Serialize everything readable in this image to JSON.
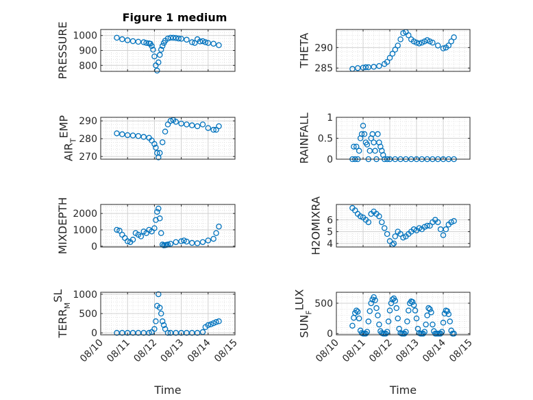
{
  "figure_title": "Figure 1 medium",
  "marker_color": "#0072BD",
  "x_ticks": [
    "08/10",
    "08/11",
    "08/12",
    "08/13",
    "08/14",
    "08/15"
  ],
  "x_label": "Time",
  "chart_data": [
    {
      "type": "scatter",
      "title": "Figure 1 medium",
      "ylabel": "PRESSURE",
      "ylabel_main": "PRESSURE",
      "ylabel_sub": "",
      "ylabel_tail": "",
      "sub_mode": "none",
      "xlim": [
        0,
        5
      ],
      "ylim": [
        760,
        1040
      ],
      "yticks": [
        800,
        900,
        1000
      ],
      "x": [
        0.6,
        0.8,
        1.0,
        1.2,
        1.4,
        1.6,
        1.7,
        1.8,
        1.85,
        1.9,
        1.95,
        2.0,
        2.05,
        2.1,
        2.15,
        2.2,
        2.25,
        2.3,
        2.35,
        2.4,
        2.5,
        2.6,
        2.7,
        2.8,
        2.9,
        3.0,
        3.2,
        3.4,
        3.5,
        3.6,
        3.7,
        3.8,
        3.9,
        4.0,
        4.2,
        4.4
      ],
      "y": [
        985,
        975,
        968,
        962,
        958,
        955,
        950,
        947,
        945,
        930,
        905,
        860,
        800,
        765,
        820,
        870,
        905,
        930,
        950,
        965,
        980,
        985,
        985,
        983,
        980,
        978,
        972,
        955,
        950,
        975,
        960,
        962,
        955,
        950,
        945,
        935
      ]
    },
    {
      "type": "scatter",
      "title": "",
      "ylabel": "THETA",
      "ylabel_main": "THETA",
      "ylabel_sub": "",
      "ylabel_tail": "",
      "sub_mode": "none",
      "xlim": [
        0,
        5
      ],
      "ylim": [
        284.2,
        294.4
      ],
      "yticks": [
        285,
        290
      ],
      "x": [
        0.6,
        0.8,
        1.0,
        1.1,
        1.2,
        1.4,
        1.6,
        1.8,
        1.9,
        2.0,
        2.1,
        2.2,
        2.3,
        2.4,
        2.5,
        2.6,
        2.7,
        2.8,
        2.9,
        3.0,
        3.1,
        3.2,
        3.3,
        3.4,
        3.5,
        3.6,
        3.8,
        4.0,
        4.1,
        4.2,
        4.3,
        4.4
      ],
      "y": [
        284.8,
        285.0,
        285.1,
        285.2,
        285.2,
        285.3,
        285.5,
        286.0,
        286.5,
        287.5,
        288.5,
        289.5,
        290.5,
        292.0,
        293.5,
        293.8,
        293.0,
        292.0,
        291.5,
        291.2,
        291.0,
        291.2,
        291.5,
        291.8,
        291.5,
        291.2,
        290.5,
        289.8,
        290.0,
        290.5,
        291.5,
        292.5
      ]
    },
    {
      "type": "scatter",
      "title": "",
      "ylabel": "AIR_TEMP",
      "ylabel_main": "AIR",
      "ylabel_sub": "T",
      "ylabel_tail": "EMP",
      "sub_mode": "sub",
      "xlim": [
        0,
        5
      ],
      "ylim": [
        268.5,
        292
      ],
      "yticks": [
        270,
        280,
        290
      ],
      "x": [
        0.6,
        0.8,
        1.0,
        1.2,
        1.4,
        1.6,
        1.8,
        1.9,
        2.0,
        2.05,
        2.1,
        2.15,
        2.2,
        2.3,
        2.4,
        2.5,
        2.6,
        2.7,
        2.8,
        3.0,
        3.2,
        3.4,
        3.6,
        3.8,
        4.0,
        4.2,
        4.3,
        4.4
      ],
      "y": [
        283,
        282.5,
        282,
        281.8,
        281.5,
        281,
        280.5,
        279,
        277,
        275,
        272,
        269.5,
        272,
        278,
        284,
        288,
        290,
        290.5,
        289.5,
        288.5,
        288,
        287.5,
        287,
        288,
        286,
        285,
        285,
        287
      ]
    },
    {
      "type": "scatter",
      "title": "",
      "ylabel": "RAINFALL",
      "ylabel_main": "RAINFALL",
      "ylabel_sub": "",
      "ylabel_tail": "",
      "sub_mode": "none",
      "xlim": [
        0,
        5
      ],
      "ylim": [
        0,
        1
      ],
      "yticks": [
        0,
        0.5,
        1
      ],
      "x": [
        0.6,
        0.65,
        0.7,
        0.75,
        0.8,
        0.85,
        0.9,
        0.95,
        1.0,
        1.05,
        1.1,
        1.15,
        1.2,
        1.25,
        1.3,
        1.35,
        1.4,
        1.45,
        1.5,
        1.55,
        1.6,
        1.65,
        1.7,
        1.75,
        1.8,
        1.9,
        2.0,
        2.2,
        2.4,
        2.6,
        2.8,
        3.0,
        3.2,
        3.4,
        3.6,
        3.8,
        4.0,
        4.2,
        4.4
      ],
      "y": [
        0,
        0.3,
        0,
        0.3,
        0,
        0.2,
        0.5,
        0.6,
        0.8,
        0.6,
        0.4,
        0.35,
        0,
        0.2,
        0.5,
        0.6,
        0.4,
        0.2,
        0,
        0.6,
        0.4,
        0.3,
        0.2,
        0.1,
        0,
        0,
        0,
        0,
        0,
        0,
        0,
        0,
        0,
        0,
        0,
        0,
        0,
        0,
        0
      ]
    },
    {
      "type": "scatter",
      "title": "",
      "ylabel": "MIXDEPTH",
      "ylabel_main": "MIXDEPTH",
      "ylabel_sub": "",
      "ylabel_tail": "",
      "sub_mode": "none",
      "xlim": [
        0,
        5
      ],
      "ylim": [
        -50,
        2550
      ],
      "yticks": [
        0,
        1000,
        2000
      ],
      "x": [
        0.6,
        0.7,
        0.8,
        0.9,
        1.0,
        1.1,
        1.2,
        1.3,
        1.4,
        1.5,
        1.6,
        1.7,
        1.8,
        1.9,
        2.0,
        2.05,
        2.1,
        2.15,
        2.2,
        2.25,
        2.3,
        2.35,
        2.4,
        2.45,
        2.5,
        2.6,
        2.8,
        3.0,
        3.1,
        3.2,
        3.4,
        3.6,
        3.8,
        4.0,
        4.2,
        4.3,
        4.4
      ],
      "y": [
        1000,
        950,
        700,
        500,
        300,
        250,
        400,
        800,
        700,
        600,
        900,
        800,
        1000,
        900,
        1100,
        1600,
        2100,
        2300,
        1700,
        800,
        100,
        50,
        60,
        80,
        100,
        150,
        250,
        300,
        350,
        280,
        200,
        180,
        250,
        350,
        450,
        800,
        1200
      ]
    },
    {
      "type": "scatter",
      "title": "",
      "ylabel": "H2OMIXRA",
      "ylabel_main": "H2OMIXRA",
      "ylabel_sub": "",
      "ylabel_tail": "",
      "sub_mode": "none",
      "xlim": [
        0,
        5
      ],
      "ylim": [
        3.7,
        7.3
      ],
      "yticks": [
        4,
        5,
        6
      ],
      "x": [
        0.6,
        0.7,
        0.8,
        0.9,
        1.0,
        1.1,
        1.2,
        1.3,
        1.4,
        1.5,
        1.6,
        1.7,
        1.8,
        1.9,
        2.0,
        2.1,
        2.15,
        2.2,
        2.3,
        2.4,
        2.5,
        2.6,
        2.7,
        2.8,
        2.9,
        3.0,
        3.1,
        3.2,
        3.3,
        3.4,
        3.5,
        3.6,
        3.7,
        3.8,
        3.9,
        4.0,
        4.1,
        4.2,
        4.3,
        4.4
      ],
      "y": [
        7.0,
        6.8,
        6.5,
        6.3,
        6.2,
        6.0,
        5.8,
        6.5,
        6.7,
        6.5,
        6.3,
        5.8,
        5.3,
        4.8,
        4.2,
        3.9,
        4.0,
        4.6,
        5.0,
        4.8,
        4.5,
        4.6,
        4.8,
        5.0,
        5.2,
        5.1,
        5.3,
        5.2,
        5.4,
        5.5,
        5.5,
        5.8,
        6.0,
        5.8,
        5.2,
        4.7,
        5.2,
        5.6,
        5.8,
        5.9
      ]
    },
    {
      "type": "scatter",
      "title": "",
      "ylabel": "TERR_MSL",
      "ylabel_main": "TERR",
      "ylabel_sub": "M",
      "ylabel_tail": "SL",
      "sub_mode": "sub",
      "xlim": [
        0,
        5
      ],
      "ylim": [
        -50,
        1050
      ],
      "yticks": [
        0,
        500,
        1000
      ],
      "x": [
        0.6,
        0.8,
        1.0,
        1.2,
        1.4,
        1.6,
        1.8,
        1.9,
        2.0,
        2.05,
        2.1,
        2.15,
        2.2,
        2.25,
        2.3,
        2.35,
        2.4,
        2.5,
        2.6,
        2.8,
        3.0,
        3.2,
        3.4,
        3.6,
        3.8,
        3.9,
        4.0,
        4.1,
        4.2,
        4.3,
        4.4
      ],
      "y": [
        0,
        0,
        0,
        0,
        0,
        0,
        0,
        20,
        100,
        300,
        700,
        1000,
        650,
        500,
        300,
        200,
        100,
        0,
        0,
        0,
        0,
        0,
        0,
        0,
        20,
        150,
        200,
        220,
        250,
        280,
        300
      ]
    },
    {
      "type": "scatter",
      "title": "",
      "ylabel": "SUN_FLUX",
      "ylabel_main": "SUN",
      "ylabel_sub": "F",
      "ylabel_tail": "LUX",
      "sub_mode": "sub",
      "xlim": [
        0,
        5
      ],
      "ylim": [
        -20,
        680
      ],
      "yticks": [
        0,
        500
      ],
      "x": [
        0.6,
        0.65,
        0.7,
        0.75,
        0.8,
        0.85,
        0.9,
        0.95,
        1.0,
        1.05,
        1.1,
        1.15,
        1.2,
        1.25,
        1.3,
        1.35,
        1.4,
        1.45,
        1.5,
        1.55,
        1.6,
        1.65,
        1.7,
        1.75,
        1.8,
        1.85,
        1.9,
        1.95,
        2.0,
        2.05,
        2.1,
        2.15,
        2.2,
        2.25,
        2.3,
        2.35,
        2.4,
        2.45,
        2.5,
        2.55,
        2.6,
        2.65,
        2.7,
        2.75,
        2.8,
        2.85,
        2.9,
        2.95,
        3.0,
        3.05,
        3.1,
        3.15,
        3.2,
        3.25,
        3.3,
        3.35,
        3.4,
        3.45,
        3.5,
        3.55,
        3.6,
        3.65,
        3.7,
        3.75,
        3.8,
        3.85,
        3.9,
        3.95,
        4.0,
        4.05,
        4.1,
        4.15,
        4.2,
        4.25,
        4.3,
        4.35,
        4.4
      ],
      "y": [
        130,
        260,
        340,
        380,
        360,
        250,
        50,
        10,
        0,
        0,
        0,
        30,
        200,
        370,
        500,
        560,
        600,
        550,
        420,
        300,
        150,
        40,
        10,
        0,
        0,
        0,
        30,
        200,
        380,
        500,
        560,
        580,
        540,
        420,
        250,
        80,
        10,
        0,
        0,
        0,
        30,
        200,
        380,
        500,
        530,
        520,
        470,
        380,
        250,
        80,
        10,
        0,
        0,
        0,
        30,
        150,
        300,
        420,
        400,
        350,
        150,
        40,
        0,
        0,
        0,
        0,
        0,
        30,
        180,
        330,
        380,
        370,
        320,
        200,
        50,
        0,
        0
      ]
    }
  ]
}
